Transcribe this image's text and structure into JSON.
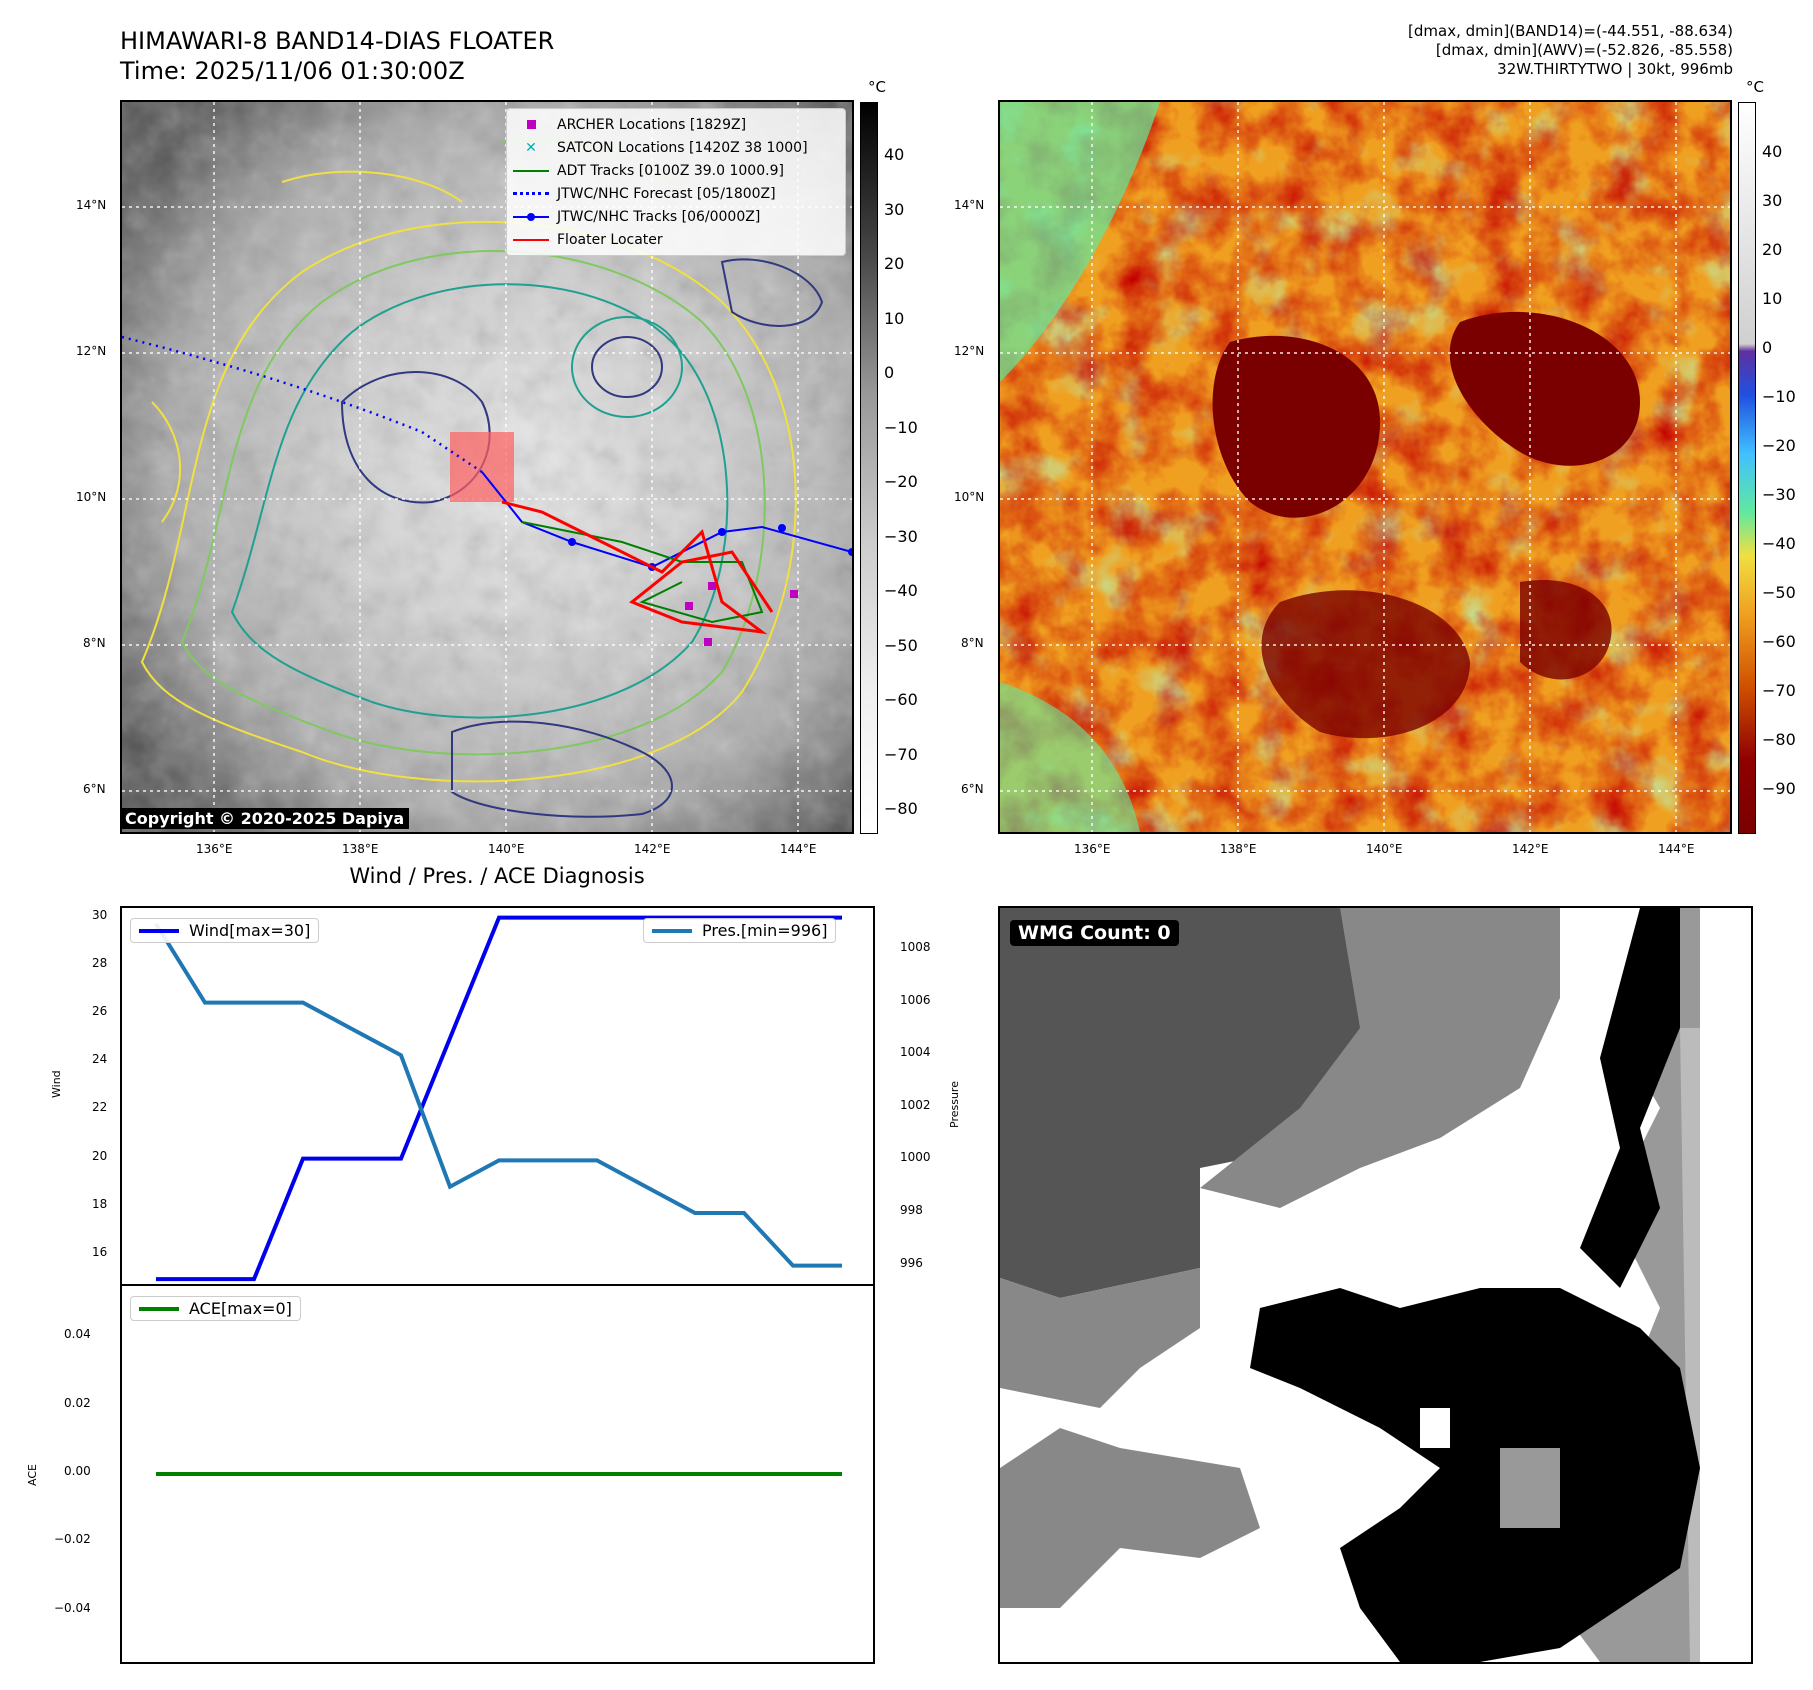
{
  "header": {
    "title_line1": "HIMAWARI-8 BAND14-DIAS FLOATER",
    "title_line2": "Time: 2025/11/06 01:30:00Z",
    "info_line1": "[dmax, dmin](BAND14)=(-44.551, -88.634)",
    "info_line2": "[dmax, dmin](AWV)=(-52.826, -85.558)",
    "info_line3": "32W.THIRTYTWO | 30kt, 996mb"
  },
  "map_axes": {
    "lat_ticks": [
      "14°N",
      "12°N",
      "10°N",
      "8°N",
      "6°N"
    ],
    "lon_ticks": [
      "136°E",
      "138°E",
      "140°E",
      "142°E",
      "144°E"
    ]
  },
  "colorbar_left": {
    "unit": "°C",
    "ticks": [
      "40",
      "30",
      "20",
      "10",
      "0",
      "−10",
      "−20",
      "−30",
      "−40",
      "−50",
      "−60",
      "−70",
      "−80"
    ]
  },
  "colorbar_right": {
    "unit": "°C",
    "ticks": [
      "40",
      "30",
      "20",
      "10",
      "0",
      "−10",
      "−20",
      "−30",
      "−40",
      "−50",
      "−60",
      "−70",
      "−80",
      "−90"
    ]
  },
  "legend": {
    "items": [
      {
        "label": "ARCHER Locations [1829Z]",
        "color": "#c000c0",
        "symbol": "square"
      },
      {
        "label": "SATCON Locations [1420Z 38 1000]",
        "color": "#00b0b0",
        "symbol": "x"
      },
      {
        "label": "ADT Tracks [0100Z 39.0 1000.9]",
        "color": "#008000",
        "symbol": "line"
      },
      {
        "label": "JTWC/NHC Forecast [05/1800Z]",
        "color": "#0000ff",
        "symbol": "dotted"
      },
      {
        "label": "JTWC/NHC Tracks [06/0000Z]",
        "color": "#0000ff",
        "symbol": "line-dot"
      },
      {
        "label": "Floater Locater",
        "color": "#ff0000",
        "symbol": "line"
      }
    ]
  },
  "copyright": "Copyright © 2020-2025 Dapiya",
  "diagnosis": {
    "title": "Wind / Pres. / ACE Diagnosis",
    "wind_label": "Wind",
    "pressure_label": "Pressure",
    "ace_label": "ACE",
    "wind_legend": "Wind[max=30]",
    "pres_legend": "Pres.[min=996]",
    "ace_legend": "ACE[max=0]"
  },
  "wmg_count": "WMG Count: 0",
  "colors": {
    "wind": "#0000ee",
    "pressure": "#1f77b4",
    "ace": "#008000"
  },
  "chart_data": [
    {
      "type": "line",
      "title": "Wind / Pres. / ACE Diagnosis",
      "ylabel": "Wind",
      "y2label": "Pressure",
      "ylim": [
        14.8,
        30.4
      ],
      "y2lim": [
        995.3,
        1009.6
      ],
      "series": [
        {
          "name": "Wind[max=30]",
          "axis": "left",
          "values": [
            15,
            15,
            15,
            20,
            20,
            20,
            25,
            30,
            30,
            30,
            30,
            30,
            30,
            30,
            30
          ]
        },
        {
          "name": "Pres.[min=996]",
          "axis": "right",
          "values": [
            1009,
            1006,
            1006,
            1006,
            1005,
            1004,
            999,
            1000,
            1000,
            1000,
            999,
            998,
            998,
            996,
            996
          ]
        }
      ]
    },
    {
      "type": "line",
      "ylabel": "ACE",
      "ylim": [
        -0.055,
        0.055
      ],
      "series": [
        {
          "name": "ACE[max=0]",
          "values": [
            0,
            0,
            0,
            0,
            0,
            0,
            0,
            0,
            0,
            0,
            0,
            0,
            0,
            0,
            0
          ]
        }
      ]
    }
  ]
}
